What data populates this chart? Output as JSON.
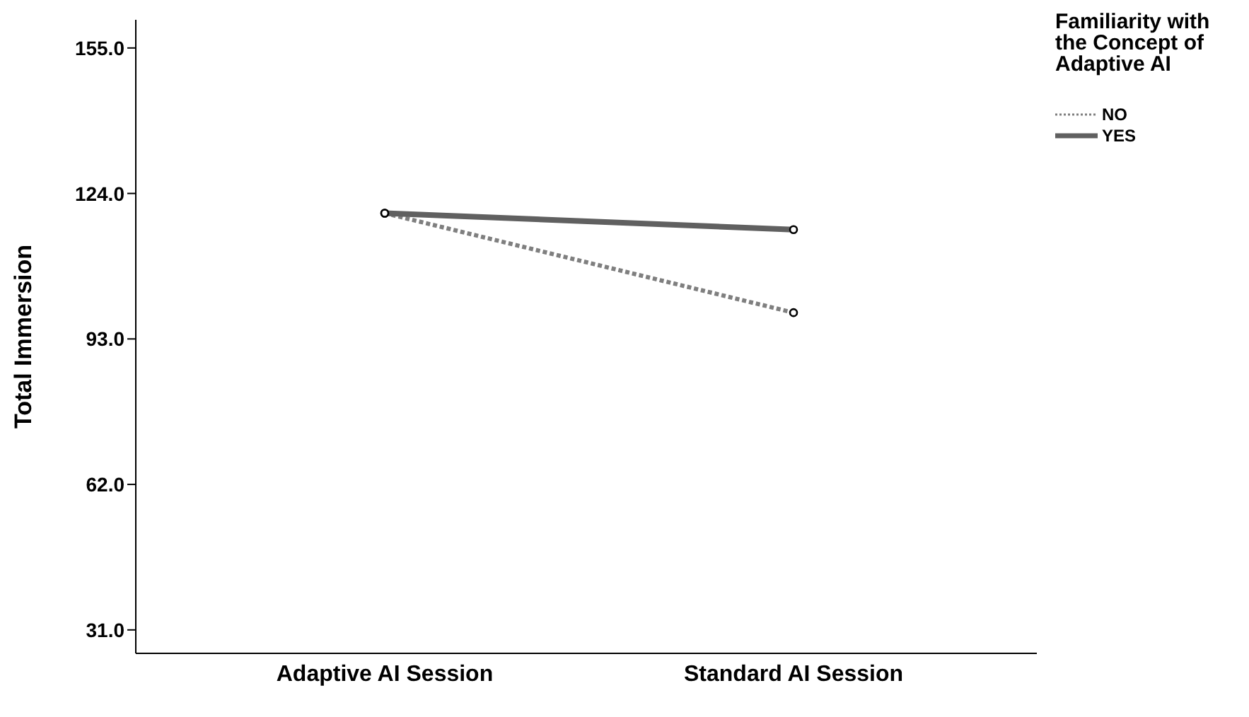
{
  "chart_data": {
    "type": "line",
    "ylabel": "Total Immersion",
    "legend_title": "Familiarity with the Concept of Adaptive AI",
    "categories": [
      "Adaptive AI Session",
      "Standard AI Session"
    ],
    "series": [
      {
        "name": "NO",
        "color": "#7f7f7f",
        "line_style": "dotted",
        "values": [
          119.8,
          98.6
        ]
      },
      {
        "name": "YES",
        "color": "#606060",
        "line_style": "solid",
        "values": [
          119.8,
          116.3
        ]
      }
    ],
    "ylim": [
      26,
      161
    ],
    "yticks": [
      {
        "value": 31,
        "label": "31.0"
      },
      {
        "value": 62,
        "label": "62.0"
      },
      {
        "value": 93,
        "label": "93.0"
      },
      {
        "value": 124,
        "label": "124.0"
      },
      {
        "value": 155,
        "label": "155.0"
      }
    ],
    "grid": false,
    "legend": "right",
    "marker": "circle"
  }
}
